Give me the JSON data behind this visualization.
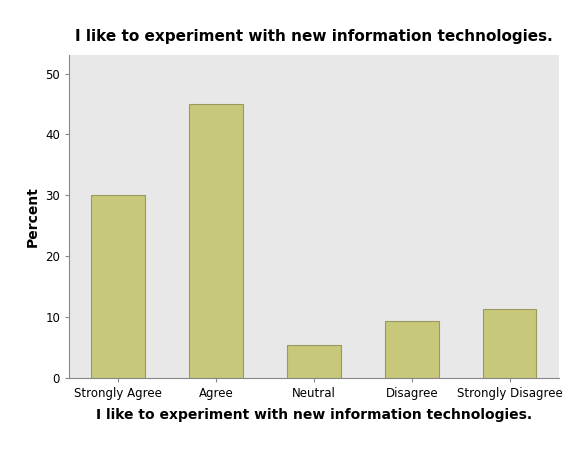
{
  "title": "I like to experiment with new information technologies.",
  "xlabel": "I like to experiment with new information technologies.",
  "ylabel": "Percent",
  "categories": [
    "Strongly Agree",
    "Agree",
    "Neutral",
    "Disagree",
    "Strongly Disagree"
  ],
  "values": [
    30.0,
    45.0,
    5.5,
    9.3,
    11.3
  ],
  "bar_color": "#C8C87A",
  "bar_edge_color": "#999960",
  "ylim": [
    0,
    53
  ],
  "yticks": [
    0,
    10,
    20,
    30,
    40,
    50
  ],
  "plot_background_color": "#E8E8E8",
  "figure_background": "#FFFFFF",
  "title_fontsize": 11,
  "axis_label_fontsize": 10,
  "tick_fontsize": 8.5,
  "bar_width": 0.55
}
